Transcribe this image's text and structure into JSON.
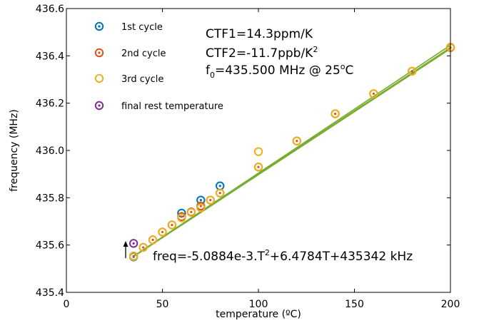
{
  "chart_data": {
    "type": "scatter",
    "xlabel": "temperature (ºC)",
    "ylabel": "frequency (MHz)",
    "xlim": [
      0,
      200
    ],
    "ylim": [
      435.4,
      436.6
    ],
    "xticks": [
      0,
      50,
      100,
      150,
      200
    ],
    "yticks": [
      435.4,
      435.6,
      435.8,
      436.0,
      436.2,
      436.4,
      436.6
    ],
    "xtick_labels": [
      "0",
      "50",
      "100",
      "150",
      "200"
    ],
    "ytick_labels": [
      "435.4",
      "435.6",
      "435.8",
      "436.0",
      "436.2",
      "436.4",
      "436.6"
    ],
    "grid": false,
    "legend_position": "top-left",
    "series": [
      {
        "name": "1st cycle",
        "color": "#0072BD",
        "marker": "circle-dot",
        "x": [
          35,
          60,
          70,
          80
        ],
        "y": [
          435.55,
          435.735,
          435.79,
          435.85
        ]
      },
      {
        "name": "2nd cycle",
        "color": "#D95319",
        "marker": "circle-dot",
        "x": [
          35,
          40,
          45,
          50,
          55,
          60,
          65,
          70,
          75,
          80,
          100,
          120,
          140,
          160,
          180,
          200
        ],
        "y": [
          435.553,
          435.59,
          435.622,
          435.655,
          435.685,
          435.72,
          435.74,
          435.765,
          435.79,
          435.82,
          435.93,
          436.04,
          436.155,
          436.24,
          436.335,
          436.435
        ]
      },
      {
        "name": "3rd cycle",
        "color": "#EDB120",
        "marker": "circle",
        "x": [
          35,
          40,
          45,
          50,
          55,
          60,
          65,
          70,
          75,
          80,
          100,
          100,
          120,
          140,
          160,
          180,
          200
        ],
        "y": [
          435.552,
          435.59,
          435.622,
          435.655,
          435.685,
          435.715,
          435.738,
          435.758,
          435.79,
          435.82,
          435.93,
          435.995,
          436.04,
          436.155,
          436.24,
          436.335,
          436.437
        ]
      },
      {
        "name": "final rest temperature",
        "color": "#7E2F8E",
        "marker": "circle-dot",
        "x": [
          35
        ],
        "y": [
          435.607
        ]
      }
    ],
    "fit_lines": {
      "color": "#77AC30",
      "lines": [
        {
          "x": [
            35,
            200
          ],
          "y": [
            435.553,
            436.435
          ]
        },
        {
          "x": [
            35,
            200
          ],
          "y": [
            435.553,
            436.445
          ]
        },
        {
          "x": [
            35,
            200
          ],
          "y": [
            435.551,
            436.43
          ]
        }
      ]
    },
    "annotations": {
      "ctf1": "CTF1=14.3ppm/K",
      "ctf2_main": "CTF2=-11.7ppb/K",
      "ctf2_sup": "2",
      "f0_pre": "f",
      "f0_sub": "0",
      "f0_post": "=435.500 MHz @ 25",
      "f0_deg": "o",
      "f0_unit": "C",
      "fit_pre": "freq=-5.0884e-3.T",
      "fit_sup": "2",
      "fit_post": "+6.4784T+435342 kHz"
    }
  }
}
